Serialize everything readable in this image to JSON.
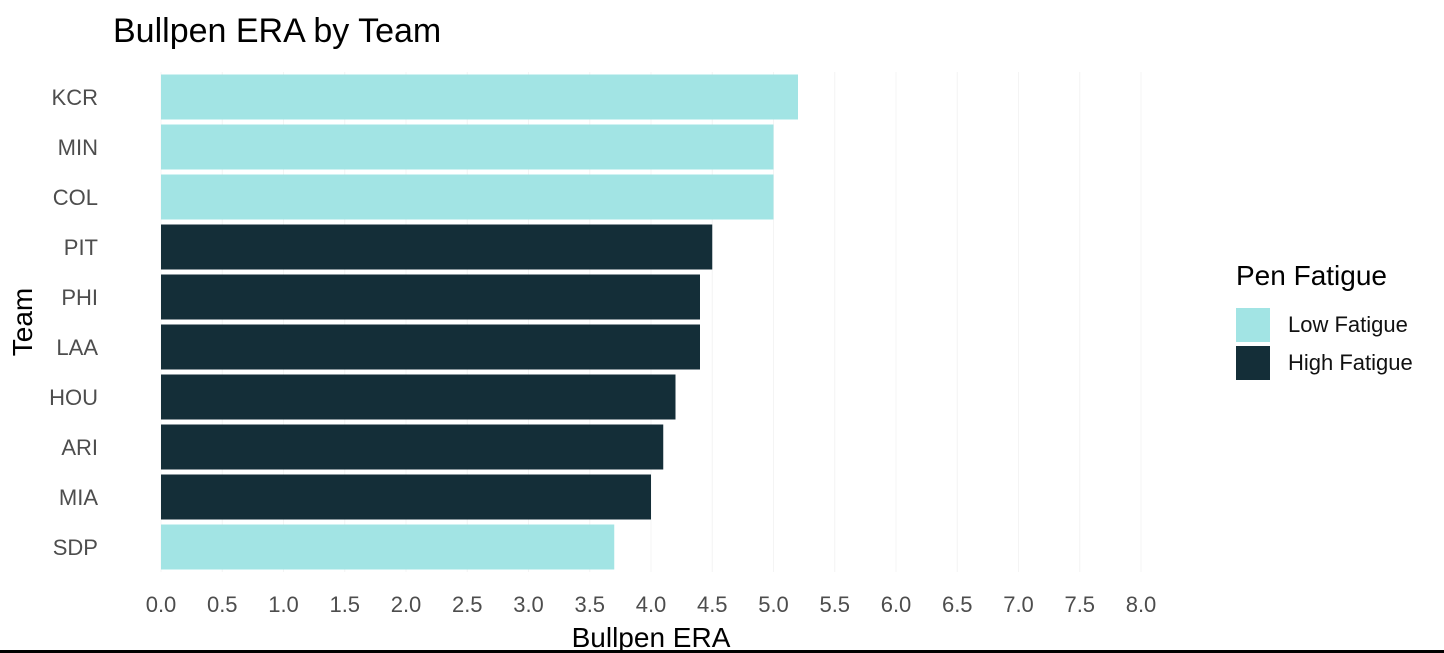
{
  "chart_data": {
    "type": "bar",
    "orientation": "horizontal",
    "title": "Bullpen ERA by Team",
    "xlabel": "Bullpen ERA",
    "ylabel": "Team",
    "xlim": [
      0,
      8
    ],
    "x_ticks": [
      "0.0",
      "0.5",
      "1.0",
      "1.5",
      "2.0",
      "2.5",
      "3.0",
      "3.5",
      "4.0",
      "4.5",
      "5.0",
      "5.5",
      "6.0",
      "6.5",
      "7.0",
      "7.5",
      "8.0"
    ],
    "grid": true,
    "legend_title": "Pen Fatigue",
    "legend_position": "right",
    "legend": [
      {
        "name": "Low Fatigue",
        "color": "#a2e4e4"
      },
      {
        "name": "High Fatigue",
        "color": "#142e38"
      }
    ],
    "categories": [
      "KCR",
      "MIN",
      "COL",
      "PIT",
      "PHI",
      "LAA",
      "HOU",
      "ARI",
      "MIA",
      "SDP"
    ],
    "values": [
      5.2,
      5.0,
      5.0,
      4.5,
      4.4,
      4.4,
      4.2,
      4.1,
      4.0,
      3.7
    ],
    "groups": [
      "Low Fatigue",
      "Low Fatigue",
      "Low Fatigue",
      "High Fatigue",
      "High Fatigue",
      "High Fatigue",
      "High Fatigue",
      "High Fatigue",
      "High Fatigue",
      "Low Fatigue"
    ]
  }
}
